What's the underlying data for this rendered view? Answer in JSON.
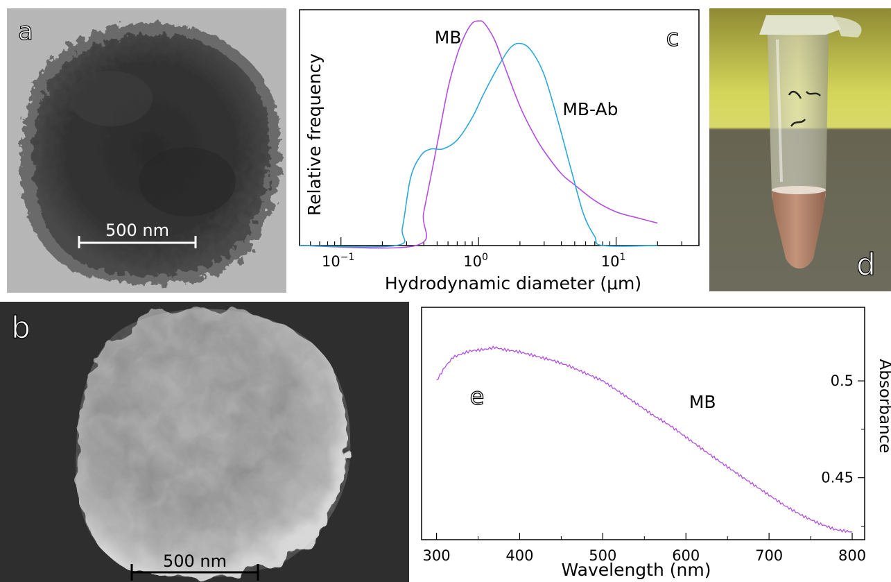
{
  "panels": {
    "a": {
      "letter": "a",
      "scale_bar_label": "500 nm"
    },
    "b": {
      "letter": "b",
      "scale_bar_label": "500 nm"
    },
    "d": {
      "letter": "d"
    }
  },
  "chart_c": {
    "letter": "c",
    "chart_data": {
      "type": "line",
      "xscale": "log",
      "xlabel": "Hydrodynamic diameter (μm)",
      "ylabel": "Relative frequency",
      "xlim": [
        0.05,
        40
      ],
      "ylim": [
        0,
        1.05
      ],
      "xticks": [
        {
          "value": 0.1,
          "base": "10",
          "exp": "−1"
        },
        {
          "value": 1,
          "base": "10",
          "exp": "0"
        },
        {
          "value": 10,
          "base": "10",
          "exp": "1"
        }
      ],
      "series": [
        {
          "name": "MB",
          "color": "#b24fe0",
          "x": [
            0.05,
            0.35,
            0.4,
            0.5,
            0.6,
            0.7,
            0.8,
            0.9,
            1.0,
            1.1,
            1.3,
            1.5,
            2.0,
            2.5,
            3.0,
            4.0,
            5.0,
            7.0,
            10.0,
            15.0,
            20.0
          ],
          "y": [
            0,
            0,
            0.15,
            0.45,
            0.7,
            0.85,
            0.94,
            0.99,
            1.0,
            0.99,
            0.92,
            0.82,
            0.62,
            0.5,
            0.42,
            0.32,
            0.27,
            0.2,
            0.15,
            0.12,
            0.1
          ]
        },
        {
          "name": "MB-Ab",
          "color": "#2aa8d6",
          "x": [
            0.05,
            0.25,
            0.28,
            0.32,
            0.38,
            0.45,
            0.55,
            0.7,
            0.9,
            1.1,
            1.4,
            1.7,
            2.0,
            2.4,
            3.0,
            3.8,
            4.7,
            5.8,
            7.0,
            8.0,
            20.0
          ],
          "y": [
            0,
            0,
            0.08,
            0.3,
            0.4,
            0.43,
            0.43,
            0.47,
            0.57,
            0.68,
            0.8,
            0.88,
            0.9,
            0.87,
            0.76,
            0.55,
            0.34,
            0.14,
            0.04,
            0,
            0
          ]
        }
      ],
      "labels": [
        {
          "text": "MB",
          "series": "MB",
          "x": 0.6,
          "y": 0.9
        },
        {
          "text": "MB-Ab",
          "series": "MB-Ab",
          "x": 6.5,
          "y": 0.58
        }
      ]
    }
  },
  "chart_e": {
    "letter": "e",
    "chart_data": {
      "type": "line",
      "xlabel": "Wavelength (nm)",
      "ylabel": "Absorbance",
      "xlim": [
        282,
        815
      ],
      "ylim": [
        0.418,
        0.538
      ],
      "xticks": [
        300,
        400,
        500,
        600,
        700,
        800
      ],
      "yticks": [
        0.45,
        0.5
      ],
      "ytick_labels": [
        "0.45",
        "0.5"
      ],
      "yaxis_side": "right",
      "series": [
        {
          "name": "MB",
          "color": "#b24fe0",
          "x": [
            300,
            310,
            320,
            340,
            360,
            370,
            380,
            400,
            420,
            440,
            460,
            480,
            500,
            520,
            540,
            560,
            580,
            600,
            620,
            640,
            660,
            680,
            700,
            720,
            740,
            760,
            780,
            800
          ],
          "y": [
            0.5,
            0.507,
            0.512,
            0.515,
            0.516,
            0.517,
            0.516,
            0.515,
            0.513,
            0.511,
            0.508,
            0.504,
            0.5,
            0.494,
            0.488,
            0.482,
            0.477,
            0.471,
            0.465,
            0.459,
            0.453,
            0.447,
            0.441,
            0.435,
            0.43,
            0.426,
            0.423,
            0.422
          ]
        }
      ],
      "labels": [
        {
          "text": "MB",
          "series": "MB",
          "x": 620,
          "y": 0.486
        }
      ]
    }
  }
}
